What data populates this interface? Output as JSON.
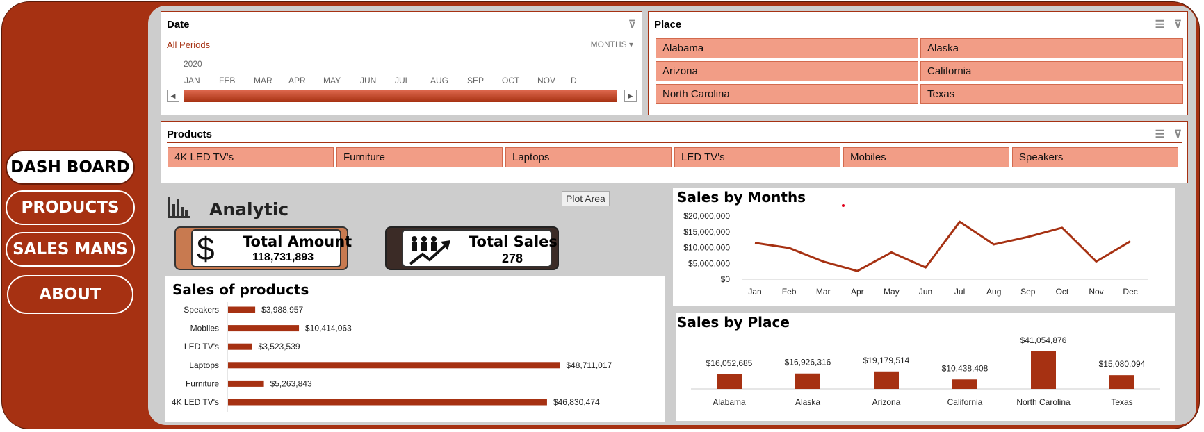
{
  "nav": {
    "dashboard": "DASH BOARD",
    "products": "PRODUCTS",
    "salesmans": "SALES MANS",
    "about": "ABOUT"
  },
  "date_slicer": {
    "title": "Date",
    "period": "All Periods",
    "unit": "MONTHS",
    "year": "2020",
    "months": [
      "JAN",
      "FEB",
      "MAR",
      "APR",
      "MAY",
      "JUN",
      "JUL",
      "AUG",
      "SEP",
      "OCT",
      "NOV",
      "D"
    ]
  },
  "place_slicer": {
    "title": "Place",
    "items": [
      "Alabama",
      "Alaska",
      "Arizona",
      "California",
      "North Carolina",
      "Texas"
    ]
  },
  "products_slicer": {
    "title": "Products",
    "items": [
      "4K LED TV's",
      "Furniture",
      "Laptops",
      "LED TV's",
      "Mobiles",
      "Speakers"
    ]
  },
  "analytic": {
    "title": "Analytic",
    "tooltip": "Plot Area",
    "total_amount_label": "Total Amount",
    "total_amount_value": "118,731,893",
    "total_sales_label": "Total Sales",
    "total_sales_value": "278",
    "icons": [
      "bar-chart-icon",
      "dollar-icon",
      "people-growth-icon"
    ]
  },
  "colors": {
    "brand": "#a63112",
    "slicer_item": "#f29d86",
    "panel": "#cdcdcd"
  },
  "chart_data": [
    {
      "type": "bar",
      "title": "Sales of products",
      "orientation": "horizontal",
      "categories": [
        "Speakers",
        "Mobiles",
        "LED TV's",
        "Laptops",
        "Furniture",
        "4K LED TV's"
      ],
      "values": [
        3988957,
        10414063,
        3523539,
        48711017,
        5263843,
        46830474
      ],
      "labels": [
        "$3,988,957",
        "$10,414,063",
        "$3,523,539",
        "$48,711,017",
        "$5,263,843",
        "$46,830,474"
      ],
      "xlim": [
        0,
        50000000
      ]
    },
    {
      "type": "line",
      "title": "Sales by Months",
      "x": [
        "Jan",
        "Feb",
        "Mar",
        "Apr",
        "May",
        "Jun",
        "Jul",
        "Aug",
        "Sep",
        "Oct",
        "Nov",
        "Dec"
      ],
      "values": [
        11500000,
        9900000,
        5600000,
        2600000,
        8500000,
        3700000,
        18200000,
        11000000,
        13400000,
        16300000,
        5600000,
        12000000
      ],
      "ylim": [
        0,
        20000000
      ],
      "yticks": [
        "$20,000,000",
        "$15,000,000",
        "$10,000,000",
        "$5,000,000",
        "$0"
      ]
    },
    {
      "type": "bar",
      "title": "Sales by Place",
      "categories": [
        "Alabama",
        "Alaska",
        "Arizona",
        "California",
        "North Carolina",
        "Texas"
      ],
      "values": [
        16052685,
        16926316,
        19179514,
        10438408,
        41054876,
        15080094
      ],
      "labels": [
        "$16,052,685",
        "$16,926,316",
        "$19,179,514",
        "$10,438,408",
        "$41,054,876",
        "$15,080,094"
      ]
    }
  ]
}
